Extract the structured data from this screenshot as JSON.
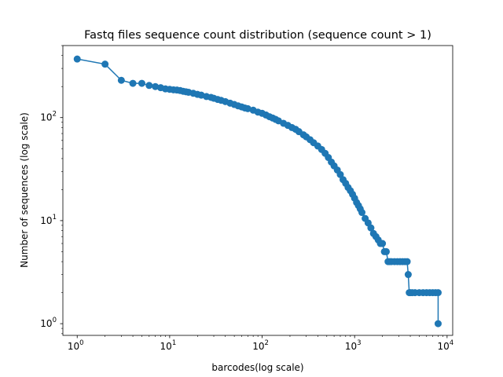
{
  "chart_data": {
    "type": "line",
    "title": "Fastq files sequence count distribution (sequence count > 1)",
    "xlabel": "barcodes(log scale)",
    "ylabel": "Number of sequences (log scale)",
    "xscale": "log",
    "yscale": "log",
    "xlim": [
      0.7,
      11500
    ],
    "ylim": [
      0.77,
      500
    ],
    "xticks": [
      {
        "value": 1,
        "base": "10",
        "exp": "0"
      },
      {
        "value": 10,
        "base": "10",
        "exp": "1"
      },
      {
        "value": 100,
        "base": "10",
        "exp": "2"
      },
      {
        "value": 1000,
        "base": "10",
        "exp": "3"
      },
      {
        "value": 10000,
        "base": "10",
        "exp": "4"
      }
    ],
    "yticks": [
      {
        "value": 1,
        "base": "10",
        "exp": "0"
      },
      {
        "value": 10,
        "base": "10",
        "exp": "1"
      },
      {
        "value": 100,
        "base": "10",
        "exp": "2"
      }
    ],
    "grid": false,
    "legend": "none",
    "marker": "circle",
    "color": "#1f77b4",
    "series": [
      {
        "x": [
          1,
          2,
          3,
          4,
          5,
          6,
          7,
          8,
          9,
          10,
          11,
          12,
          13,
          14,
          15,
          16,
          18,
          20,
          22,
          25,
          28,
          30,
          33,
          36,
          40,
          45,
          50,
          55,
          60,
          65,
          70,
          80,
          90,
          100,
          110,
          120,
          130,
          140,
          150,
          170,
          190,
          210,
          230,
          250,
          280,
          300,
          330,
          360,
          400,
          440,
          480,
          520,
          560,
          600,
          650,
          700,
          750,
          800,
          850,
          900,
          950,
          1000,
          1050,
          1100,
          1150,
          1200,
          1300,
          1400,
          1500,
          1600,
          1700,
          1800,
          1900,
          2000,
          2100,
          2200,
          2300,
          2400,
          2500,
          2700,
          2900,
          3100,
          3300,
          3500,
          3700,
          3800,
          3900,
          4000,
          4200,
          4500,
          5000,
          5500,
          6000,
          6500,
          7000,
          7500,
          8000,
          8000
        ],
        "y": [
          370,
          330,
          230,
          215,
          215,
          205,
          200,
          195,
          190,
          188,
          186,
          185,
          183,
          180,
          178,
          176,
          172,
          168,
          165,
          160,
          157,
          154,
          150,
          147,
          143,
          138,
          134,
          130,
          127,
          124,
          122,
          118,
          113,
          110,
          106,
          102,
          99,
          96,
          93,
          88,
          84,
          80,
          77,
          73,
          68,
          65,
          61,
          57,
          53,
          49,
          45,
          41,
          37,
          34,
          31,
          28,
          25,
          23,
          21,
          19.5,
          18,
          16.5,
          15,
          14,
          13,
          12,
          10.5,
          9.5,
          8.5,
          7.5,
          7,
          6.5,
          6,
          6,
          5,
          5,
          4,
          4,
          4,
          4,
          4,
          4,
          4,
          4,
          4,
          3,
          2,
          2,
          2,
          2,
          2,
          2,
          2,
          2,
          2,
          2,
          2,
          1
        ]
      }
    ]
  }
}
